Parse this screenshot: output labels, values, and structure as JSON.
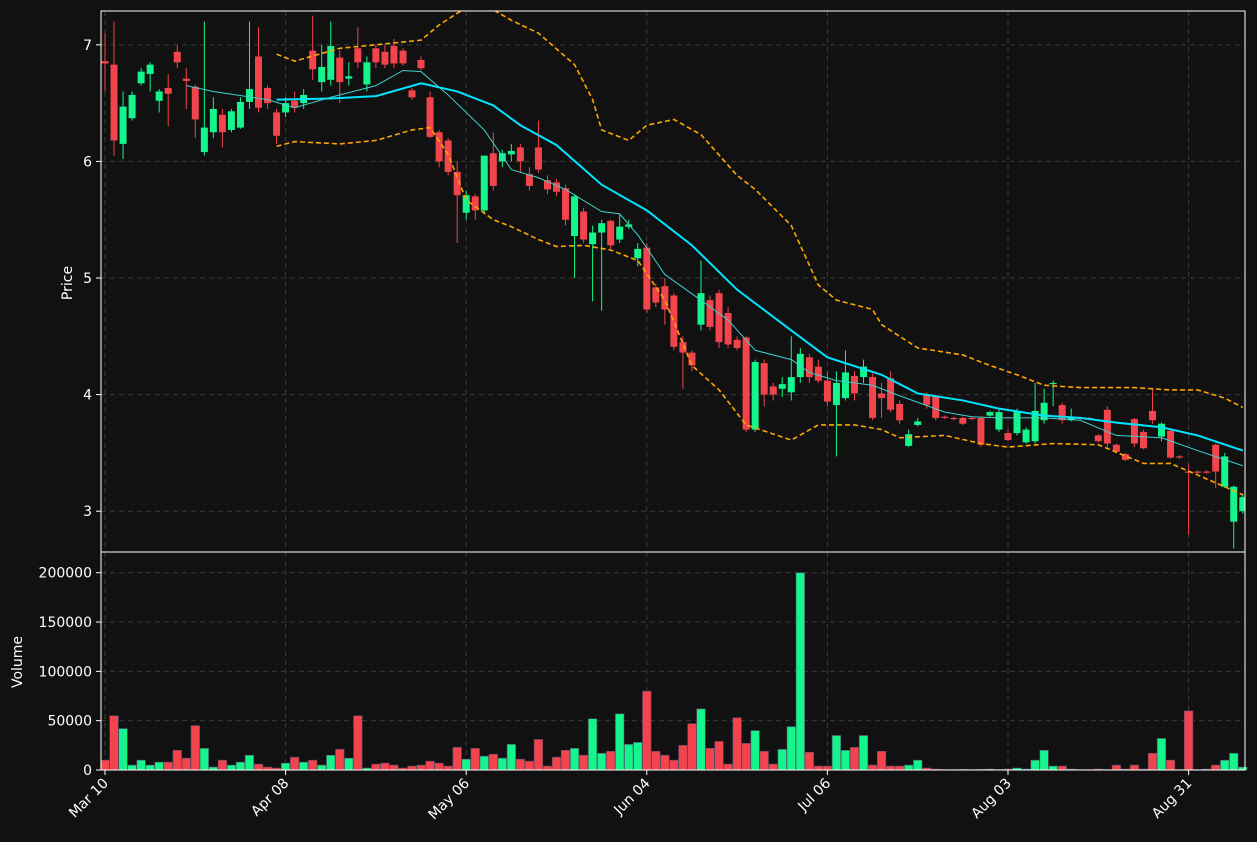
{
  "chart_data": [
    {
      "type": "candlestick",
      "ylabel": "Price",
      "ylim": [
        2.65,
        7.29
      ],
      "yticks": [
        3,
        4,
        5,
        6,
        7
      ],
      "grid": true,
      "up_color": "#14f58c",
      "down_color": "#f2444c",
      "open": [
        6.86,
        6.83,
        6.15,
        6.37,
        6.67,
        6.75,
        6.52,
        6.63,
        6.94,
        6.71,
        6.64,
        6.08,
        6.25,
        6.4,
        6.27,
        6.29,
        6.51,
        6.9,
        6.63,
        6.42,
        6.42,
        6.52,
        6.5,
        6.95,
        6.68,
        6.7,
        6.89,
        6.71,
        6.97,
        6.66,
        6.97,
        6.94,
        6.99,
        6.95,
        6.61,
        6.87,
        6.55,
        6.25,
        6.18,
        5.91,
        5.56,
        5.7,
        5.58,
        6.07,
        6.0,
        6.06,
        6.12,
        5.89,
        6.12,
        5.84,
        5.82,
        5.77,
        5.36,
        5.57,
        5.29,
        5.39,
        5.49,
        5.33,
        5.44,
        5.17,
        5.26,
        4.92,
        4.93,
        4.85,
        4.45,
        4.36,
        4.6,
        4.81,
        4.87,
        4.7,
        4.47,
        4.49,
        3.7,
        4.27,
        4.07,
        4.05,
        4.02,
        4.15,
        4.32,
        4.24,
        4.12,
        3.91,
        3.97,
        4.16,
        4.15,
        4.15,
        4.01,
        4.14,
        3.92,
        3.56,
        3.74,
        4.0,
        3.99,
        3.81,
        3.8,
        3.8,
        3.8,
        3.8,
        3.82,
        3.7,
        3.67,
        3.67,
        3.59,
        3.6,
        3.78,
        4.09,
        3.91,
        3.78,
        3.8,
        3.8,
        3.65,
        3.87,
        3.57,
        3.49,
        3.79,
        3.68,
        3.86,
        3.64,
        3.69,
        3.47,
        3.34,
        3.34,
        3.34,
        3.57,
        3.21,
        2.91,
        3.0
      ],
      "high": [
        7.1,
        7.2,
        6.6,
        6.6,
        6.8,
        6.85,
        6.62,
        6.75,
        7.0,
        6.8,
        6.66,
        7.2,
        6.55,
        6.45,
        6.45,
        6.55,
        7.2,
        7.15,
        6.65,
        6.45,
        6.55,
        6.6,
        6.62,
        7.25,
        7.0,
        7.2,
        6.95,
        6.85,
        7.15,
        6.9,
        7.0,
        7.0,
        7.05,
        6.97,
        6.63,
        6.9,
        6.6,
        6.27,
        6.2,
        6.0,
        5.75,
        5.72,
        6.05,
        6.25,
        6.1,
        6.15,
        6.15,
        5.95,
        6.35,
        5.88,
        5.85,
        5.8,
        5.72,
        5.6,
        5.45,
        5.5,
        5.5,
        5.55,
        5.5,
        5.3,
        5.3,
        4.95,
        5.0,
        4.87,
        4.5,
        4.38,
        5.15,
        4.85,
        4.9,
        4.75,
        4.5,
        4.5,
        4.3,
        4.3,
        4.1,
        4.15,
        4.5,
        4.4,
        4.35,
        4.3,
        4.2,
        4.2,
        4.38,
        4.2,
        4.3,
        4.18,
        4.1,
        4.2,
        3.95,
        3.7,
        3.8,
        4.02,
        4.0,
        3.82,
        3.81,
        3.81,
        3.81,
        3.81,
        3.86,
        3.87,
        3.7,
        3.88,
        3.72,
        4.1,
        4.05,
        4.12,
        3.93,
        3.88,
        3.81,
        3.81,
        3.66,
        3.9,
        3.58,
        3.5,
        3.8,
        3.7,
        4.05,
        3.76,
        3.7,
        3.48,
        3.4,
        3.35,
        3.35,
        3.58,
        3.5,
        3.22,
        3.15
      ],
      "low": [
        6.6,
        6.05,
        6.02,
        6.35,
        6.65,
        6.6,
        6.42,
        6.3,
        6.8,
        6.45,
        6.2,
        6.05,
        6.2,
        6.12,
        6.25,
        6.28,
        6.45,
        6.42,
        6.45,
        6.15,
        6.38,
        6.42,
        6.45,
        6.7,
        6.6,
        6.65,
        6.5,
        6.65,
        6.8,
        6.6,
        6.8,
        6.8,
        6.8,
        6.82,
        6.53,
        6.78,
        6.2,
        5.95,
        5.88,
        5.3,
        5.5,
        5.5,
        5.55,
        5.75,
        5.95,
        6.0,
        5.9,
        5.75,
        5.9,
        5.72,
        5.7,
        5.45,
        5.0,
        5.3,
        4.8,
        4.72,
        5.25,
        5.3,
        5.42,
        5.1,
        4.7,
        4.75,
        4.6,
        4.38,
        4.05,
        4.2,
        4.55,
        4.55,
        4.4,
        4.4,
        4.38,
        3.68,
        3.68,
        3.9,
        3.95,
        3.98,
        3.95,
        4.1,
        4.1,
        4.1,
        3.9,
        3.47,
        3.95,
        3.95,
        4.1,
        3.78,
        3.8,
        3.85,
        3.75,
        3.55,
        3.73,
        3.88,
        3.78,
        3.79,
        3.78,
        3.74,
        3.78,
        3.55,
        3.81,
        3.68,
        3.6,
        3.65,
        3.58,
        3.58,
        3.75,
        3.9,
        3.75,
        3.77,
        3.78,
        3.78,
        3.59,
        3.55,
        3.5,
        3.43,
        3.55,
        3.53,
        3.75,
        3.6,
        3.45,
        3.45,
        2.8,
        3.32,
        3.32,
        3.2,
        3.2,
        2.68,
        2.98
      ],
      "close": [
        6.84,
        6.18,
        6.47,
        6.57,
        6.77,
        6.83,
        6.6,
        6.58,
        6.85,
        6.69,
        6.36,
        6.29,
        6.45,
        6.25,
        6.43,
        6.51,
        6.62,
        6.46,
        6.5,
        6.22,
        6.5,
        6.46,
        6.57,
        6.79,
        6.81,
        6.99,
        6.68,
        6.73,
        6.85,
        6.85,
        6.85,
        6.83,
        6.84,
        6.84,
        6.55,
        6.8,
        6.21,
        6.0,
        5.91,
        5.71,
        5.71,
        5.58,
        6.05,
        5.79,
        6.07,
        6.09,
        6.0,
        5.79,
        5.93,
        5.76,
        5.74,
        5.5,
        5.7,
        5.33,
        5.39,
        5.47,
        5.28,
        5.44,
        5.46,
        5.25,
        4.73,
        4.79,
        4.73,
        4.41,
        4.36,
        4.25,
        4.87,
        4.58,
        4.45,
        4.43,
        4.4,
        3.7,
        4.28,
        4.0,
        4.0,
        4.09,
        4.15,
        4.35,
        4.15,
        4.12,
        3.94,
        4.1,
        4.19,
        4.01,
        4.24,
        3.8,
        3.97,
        3.87,
        3.78,
        3.66,
        3.77,
        3.91,
        3.8,
        3.8,
        3.79,
        3.75,
        3.79,
        3.57,
        3.85,
        3.85,
        3.61,
        3.86,
        3.7,
        3.86,
        3.93,
        4.1,
        3.78,
        3.8,
        3.79,
        3.79,
        3.6,
        3.58,
        3.51,
        3.44,
        3.58,
        3.54,
        3.78,
        3.75,
        3.46,
        3.46,
        3.33,
        3.33,
        3.33,
        3.34,
        3.47,
        3.21,
        3.12
      ],
      "lines": [
        {
          "color": "#00e5ff",
          "width": 2,
          "dash": "none",
          "x": [
            19,
            25,
            30,
            35,
            39,
            43,
            46,
            50,
            55,
            60,
            65,
            70,
            76,
            80,
            86,
            90,
            95,
            99,
            104,
            108,
            112,
            117,
            121,
            126
          ],
          "values": [
            6.53,
            6.54,
            6.56,
            6.67,
            6.6,
            6.48,
            6.31,
            6.14,
            5.8,
            5.58,
            5.28,
            4.9,
            4.55,
            4.32,
            4.17,
            4.01,
            3.95,
            3.88,
            3.82,
            3.8,
            3.76,
            3.72,
            3.65,
            3.52
          ]
        },
        {
          "color": "#40d0d0",
          "width": 1,
          "dash": "none",
          "x": [
            9,
            12,
            18,
            21,
            25,
            30,
            33,
            35,
            38,
            42,
            45,
            48,
            51,
            55,
            57,
            59,
            62,
            66,
            69,
            72,
            76,
            78,
            81,
            85,
            88,
            93,
            96,
            99,
            104,
            108,
            112,
            117,
            121,
            126
          ],
          "values": [
            6.65,
            6.6,
            6.53,
            6.46,
            6.55,
            6.65,
            6.78,
            6.77,
            6.57,
            6.27,
            5.93,
            5.86,
            5.76,
            5.57,
            5.55,
            5.37,
            5.03,
            4.81,
            4.64,
            4.38,
            4.3,
            4.19,
            4.12,
            4.08,
            3.99,
            3.85,
            3.81,
            3.8,
            3.8,
            3.78,
            3.65,
            3.63,
            3.52,
            3.39
          ]
        },
        {
          "color": "#ffa500",
          "width": 1.6,
          "dash": "5 3",
          "x": [
            19,
            21,
            26,
            30,
            35,
            37,
            40,
            43,
            45,
            48,
            52,
            54,
            55,
            58,
            60,
            63,
            66,
            70,
            72,
            76,
            79,
            81,
            85,
            86,
            90,
            95,
            98,
            101,
            104,
            108,
            114,
            118,
            121,
            124,
            126
          ],
          "values": [
            6.92,
            6.86,
            6.97,
            7.0,
            7.04,
            7.17,
            7.32,
            7.3,
            7.21,
            7.1,
            6.83,
            6.53,
            6.27,
            6.18,
            6.31,
            6.36,
            6.23,
            5.88,
            5.76,
            5.45,
            4.94,
            4.81,
            4.73,
            4.6,
            4.4,
            4.34,
            4.25,
            4.17,
            4.08,
            4.06,
            4.06,
            4.04,
            4.04,
            3.97,
            3.89
          ]
        },
        {
          "color": "#ffa500",
          "width": 1.6,
          "dash": "5 3",
          "x": [
            19,
            21,
            26,
            30,
            34,
            36,
            38,
            40,
            43,
            45,
            48,
            50,
            53,
            56,
            59,
            62,
            65,
            68,
            71,
            76,
            79,
            83,
            86,
            88,
            93,
            97,
            100,
            105,
            110,
            115,
            118,
            121,
            124,
            126
          ],
          "values": [
            6.13,
            6.17,
            6.15,
            6.18,
            6.27,
            6.29,
            6.06,
            5.67,
            5.5,
            5.44,
            5.33,
            5.27,
            5.28,
            5.24,
            5.15,
            4.81,
            4.25,
            4.04,
            3.74,
            3.61,
            3.74,
            3.74,
            3.7,
            3.63,
            3.65,
            3.58,
            3.55,
            3.58,
            3.57,
            3.41,
            3.41,
            3.31,
            3.21,
            3.14
          ]
        }
      ]
    },
    {
      "type": "bar",
      "ylabel": "Volume",
      "ylim": [
        0,
        221000
      ],
      "yticks": [
        0,
        50000,
        100000,
        150000,
        200000
      ],
      "grid": true,
      "categories": [
        "Mar 10",
        null,
        null,
        null,
        null,
        null,
        null,
        null,
        null,
        null,
        null,
        null,
        null,
        null,
        null,
        null,
        null,
        null,
        null,
        null,
        "Apr 08",
        null,
        null,
        null,
        null,
        null,
        null,
        null,
        null,
        null,
        null,
        null,
        null,
        null,
        null,
        null,
        null,
        null,
        null,
        null,
        "May 06",
        null,
        null,
        null,
        null,
        null,
        null,
        null,
        null,
        null,
        null,
        null,
        null,
        null,
        null,
        null,
        null,
        null,
        null,
        null,
        "Jun 04",
        null,
        null,
        null,
        null,
        null,
        null,
        null,
        null,
        null,
        null,
        null,
        null,
        null,
        null,
        null,
        null,
        null,
        null,
        null,
        "Jul 06",
        null,
        null,
        null,
        null,
        null,
        null,
        null,
        null,
        null,
        null,
        null,
        null,
        null,
        null,
        null,
        null,
        null,
        null,
        null,
        "Aug 03",
        null,
        null,
        null,
        null,
        null,
        null,
        null,
        null,
        null,
        null,
        null,
        null,
        null,
        null,
        null,
        null,
        null,
        null,
        null,
        "Aug 31",
        null,
        null,
        null,
        null,
        null,
        null
      ],
      "values": [
        10000,
        55000,
        42000,
        5000,
        10000,
        5000,
        8000,
        8000,
        20000,
        12000,
        45000,
        22000,
        3000,
        10000,
        5000,
        8000,
        15000,
        6000,
        3000,
        2000,
        7000,
        13000,
        8000,
        10000,
        5000,
        15000,
        21000,
        12000,
        55000,
        2000,
        6000,
        7000,
        5000,
        2000,
        4000,
        5000,
        9000,
        7000,
        4000,
        23000,
        11000,
        22000,
        14000,
        16000,
        12000,
        26000,
        11000,
        9000,
        31000,
        4000,
        13000,
        20000,
        22000,
        15000,
        52000,
        17000,
        19000,
        57000,
        26000,
        28000,
        80000,
        19000,
        15000,
        10000,
        25000,
        47000,
        62000,
        22000,
        29000,
        6000,
        53000,
        27000,
        40000,
        19000,
        6000,
        21000,
        44000,
        200000,
        18000,
        4000,
        4000,
        35000,
        20000,
        23000,
        35000,
        5000,
        19000,
        4000,
        4000,
        5000,
        10000,
        2000,
        1000,
        500,
        500,
        800,
        500,
        800,
        1000,
        500,
        1000,
        2000,
        1000,
        10000,
        20000,
        4000,
        4000,
        1000,
        500,
        500,
        1000,
        500,
        5000,
        1000,
        5000,
        1000,
        17000,
        32000,
        10000,
        500,
        60000,
        500,
        1000,
        5000,
        10000,
        17000,
        3000
      ]
    }
  ]
}
